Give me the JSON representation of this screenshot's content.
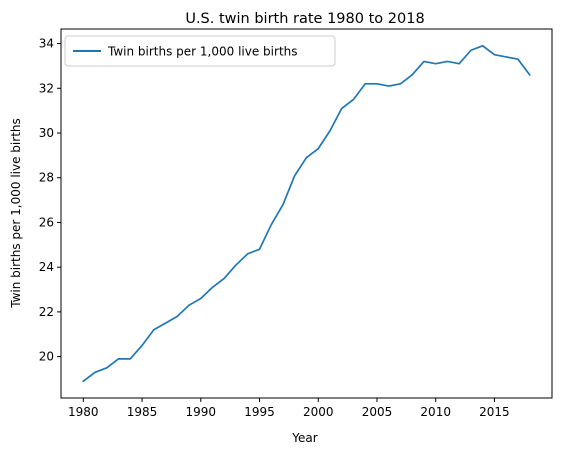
{
  "chart_data": {
    "type": "line",
    "title": "U.S. twin birth rate 1980 to 2018",
    "xlabel": "Year",
    "ylabel": "Twin births per 1,000 live births",
    "xlim": [
      1978.1,
      2019.9
    ],
    "ylim": [
      18.15,
      34.65
    ],
    "xticks": [
      1980,
      1985,
      1990,
      1995,
      2000,
      2005,
      2010,
      2015
    ],
    "yticks": [
      20,
      22,
      24,
      26,
      28,
      30,
      32,
      34
    ],
    "grid": false,
    "legend_position": "top-left",
    "series": [
      {
        "name": "Twin births per 1,000 live births",
        "color": "#1f77b4",
        "x": [
          1980,
          1981,
          1982,
          1983,
          1984,
          1985,
          1986,
          1987,
          1988,
          1989,
          1990,
          1991,
          1992,
          1993,
          1994,
          1995,
          1996,
          1997,
          1998,
          1999,
          2000,
          2001,
          2002,
          2003,
          2004,
          2005,
          2006,
          2007,
          2008,
          2009,
          2010,
          2011,
          2012,
          2013,
          2014,
          2015,
          2016,
          2017,
          2018
        ],
        "y": [
          18.9,
          19.3,
          19.5,
          19.9,
          19.9,
          20.5,
          21.2,
          21.5,
          21.8,
          22.3,
          22.6,
          23.1,
          23.5,
          24.1,
          24.6,
          24.8,
          25.9,
          26.8,
          28.1,
          28.9,
          29.3,
          30.1,
          31.1,
          31.5,
          32.2,
          32.2,
          32.1,
          32.2,
          32.6,
          33.2,
          33.1,
          33.2,
          33.1,
          33.7,
          33.9,
          33.5,
          33.4,
          33.3,
          32.6
        ]
      }
    ]
  }
}
